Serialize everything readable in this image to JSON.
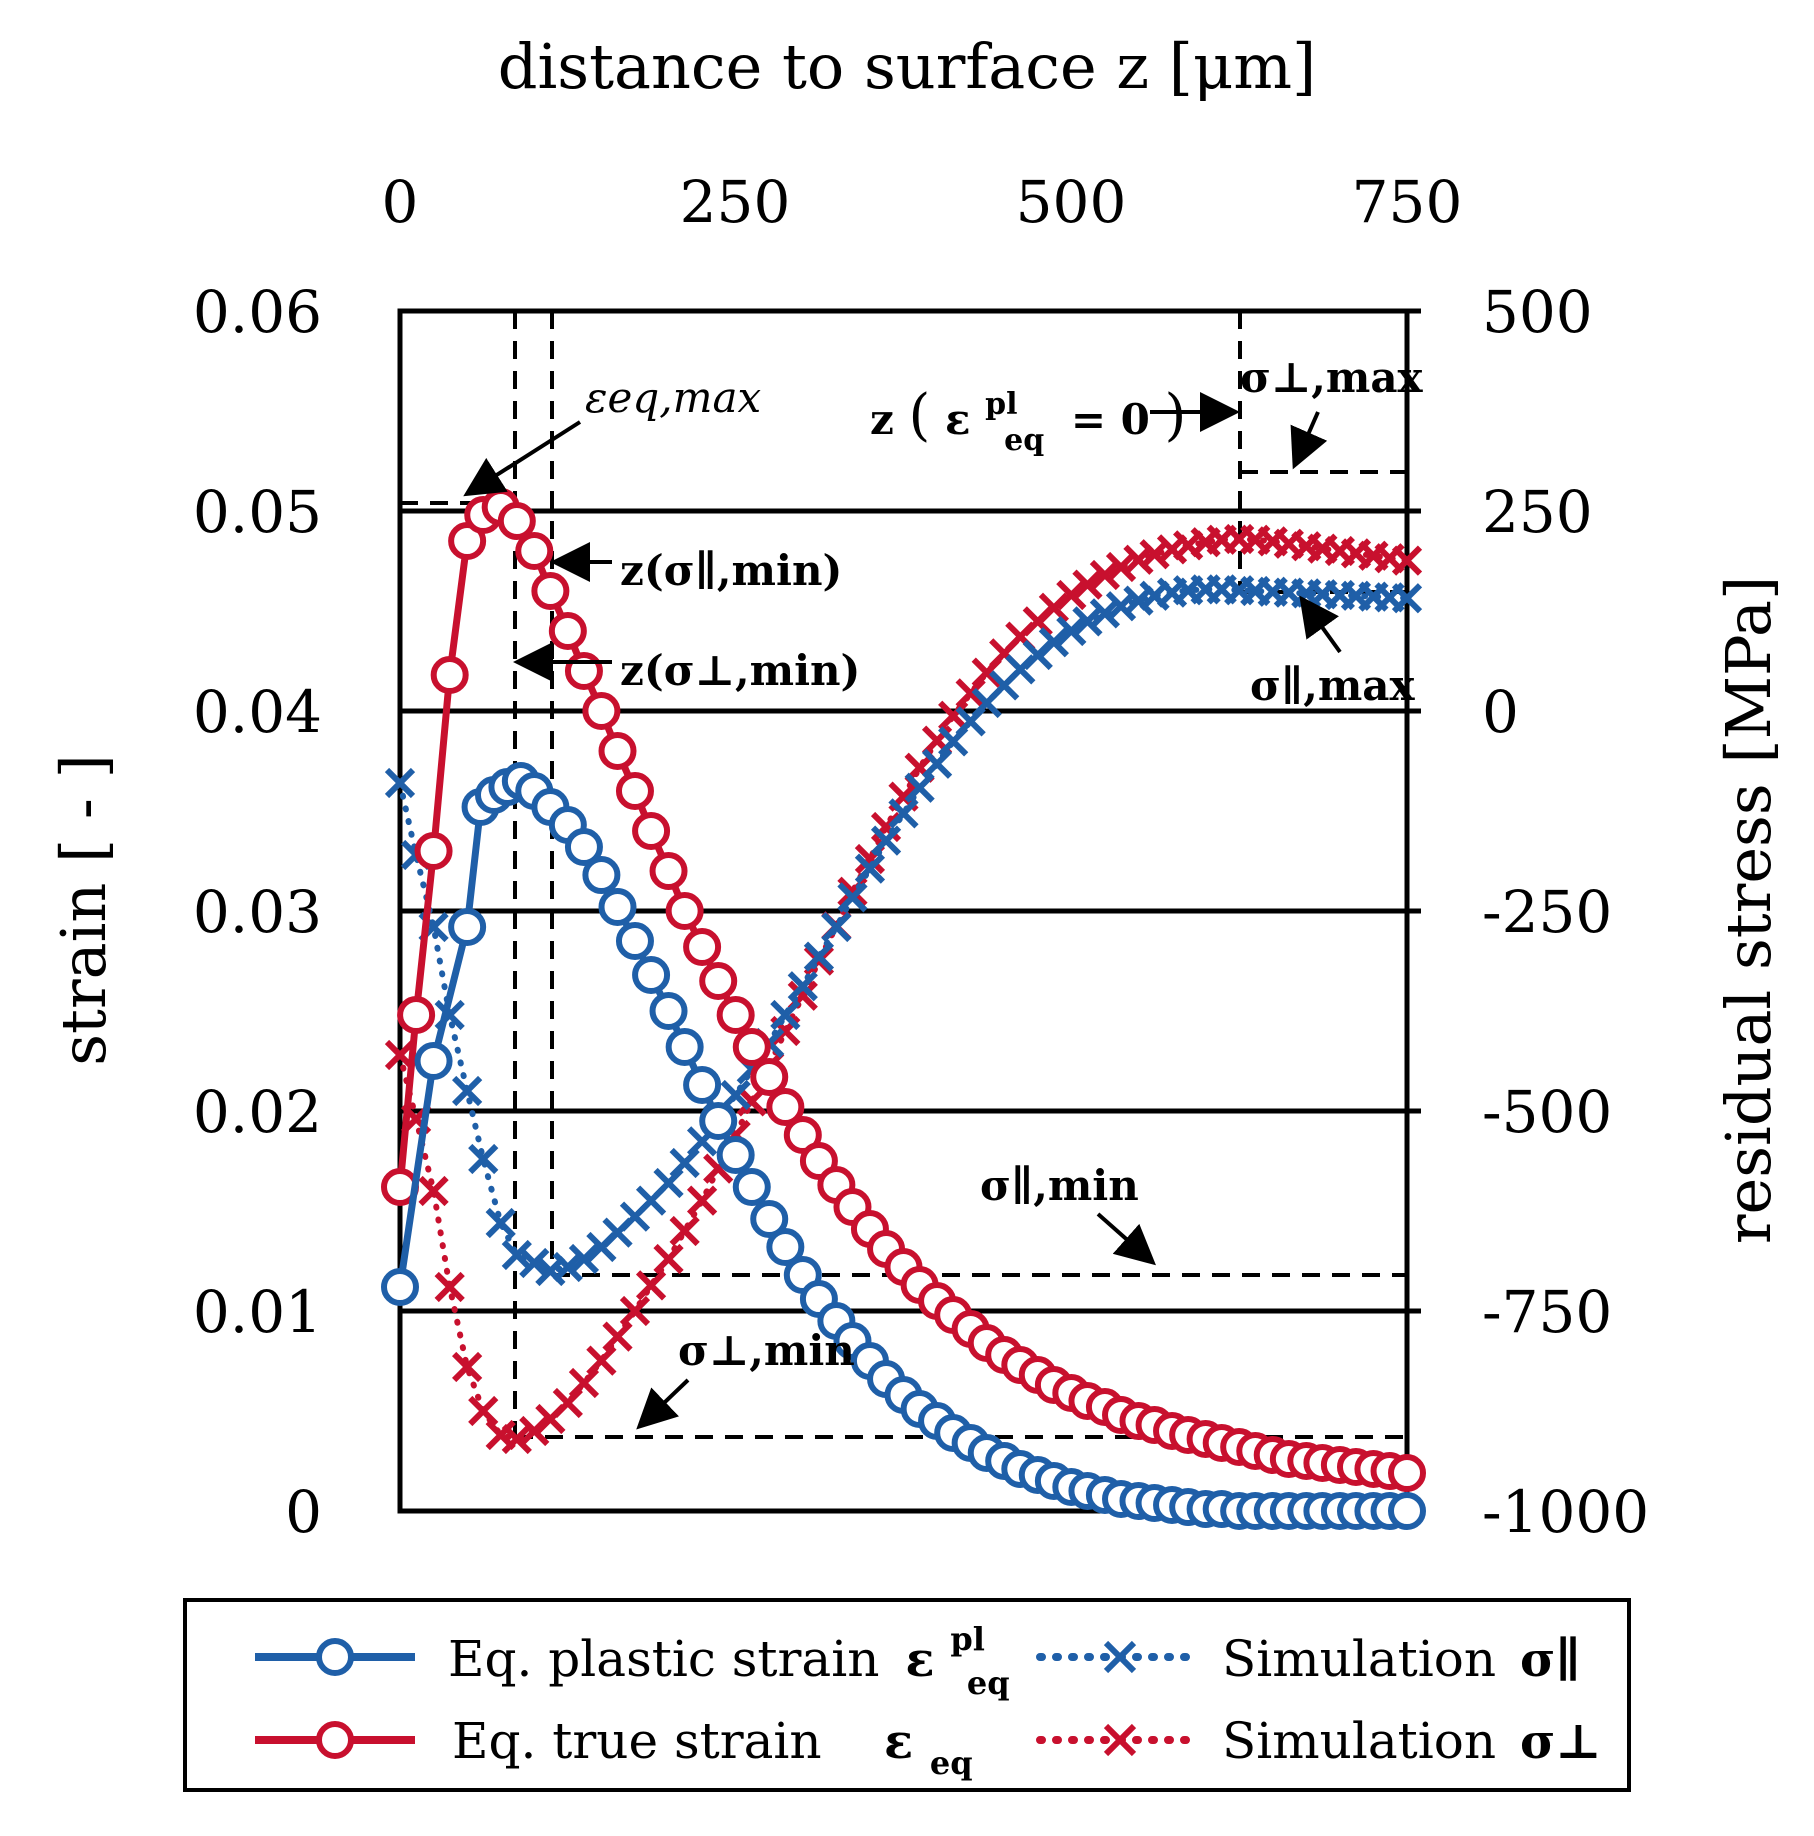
{
  "chart_data": {
    "type": "line",
    "x_axis": {
      "label": "distance to surface z [μm]",
      "ticks": [
        "0",
        "250",
        "500",
        "750"
      ],
      "range": [
        0,
        750
      ],
      "position": "top"
    },
    "y_axis_left": {
      "label": "strain [ - ]",
      "ticks": [
        "0",
        "0.01",
        "0.02",
        "0.03",
        "0.04",
        "0.05",
        "0.06"
      ],
      "range": [
        0,
        0.06
      ]
    },
    "y_axis_right": {
      "label": "residual stress [MPa]",
      "ticks": [
        "-1000",
        "-750",
        "-500",
        "-250",
        "0",
        "250",
        "500"
      ],
      "range": [
        -1000,
        500
      ]
    },
    "grid": "horizontal",
    "legend_position": "bottom",
    "colors": {
      "blue": "#1f5fa8",
      "red": "#c8102e"
    },
    "series": [
      {
        "name": "Eq. plastic strain εeq pl",
        "axis": "left",
        "style": "solid-circle",
        "color": "#1f5fa8",
        "x": [
          0,
          25,
          50,
          60,
          70,
          80,
          90,
          100,
          112,
          125,
          137,
          150,
          162,
          175,
          187,
          200,
          212,
          225,
          237,
          250,
          262,
          275,
          287,
          300,
          312,
          325,
          337,
          350,
          362,
          375,
          387,
          400,
          412,
          425,
          437,
          450,
          462,
          475,
          487,
          500,
          512,
          525,
          537,
          550,
          562,
          575,
          587,
          600,
          612,
          625,
          637,
          650,
          662,
          675,
          687,
          700,
          712,
          725,
          737,
          750
        ],
        "y": [
          0.0112,
          0.0225,
          0.0292,
          0.0352,
          0.0358,
          0.0362,
          0.0365,
          0.036,
          0.0352,
          0.0343,
          0.0332,
          0.0318,
          0.0302,
          0.0285,
          0.0268,
          0.025,
          0.0232,
          0.0213,
          0.0195,
          0.0178,
          0.0162,
          0.0146,
          0.0132,
          0.0118,
          0.0106,
          0.0095,
          0.0085,
          0.0075,
          0.0066,
          0.0058,
          0.0051,
          0.0045,
          0.0039,
          0.0034,
          0.0029,
          0.0025,
          0.0021,
          0.0018,
          0.0015,
          0.0012,
          0.001,
          0.0008,
          0.0006,
          0.0005,
          0.0004,
          0.0003,
          0.0002,
          0.0001,
          0.0001,
          0.0,
          0.0,
          0.0,
          0.0,
          0.0,
          0.0,
          0.0,
          0.0,
          0.0,
          0.0,
          0.0
        ]
      },
      {
        "name": "Eq. true strain εeq",
        "axis": "left",
        "style": "solid-circle",
        "color": "#c8102e",
        "x": [
          0,
          12,
          25,
          37,
          50,
          62,
          75,
          87,
          100,
          112,
          125,
          137,
          150,
          162,
          175,
          187,
          200,
          212,
          225,
          237,
          250,
          262,
          275,
          287,
          300,
          312,
          325,
          337,
          350,
          362,
          375,
          387,
          400,
          412,
          425,
          437,
          450,
          462,
          475,
          487,
          500,
          512,
          525,
          537,
          550,
          562,
          575,
          587,
          600,
          612,
          625,
          637,
          650,
          662,
          675,
          687,
          700,
          712,
          725,
          737,
          750
        ],
        "y": [
          0.0162,
          0.0248,
          0.033,
          0.0418,
          0.0485,
          0.0498,
          0.0502,
          0.0495,
          0.048,
          0.046,
          0.044,
          0.042,
          0.04,
          0.038,
          0.036,
          0.034,
          0.032,
          0.03,
          0.0282,
          0.0265,
          0.0248,
          0.0232,
          0.0217,
          0.0202,
          0.0188,
          0.0175,
          0.0163,
          0.0152,
          0.0141,
          0.0131,
          0.0122,
          0.0113,
          0.0105,
          0.0098,
          0.0091,
          0.0084,
          0.0078,
          0.0073,
          0.0068,
          0.0063,
          0.0059,
          0.0055,
          0.0052,
          0.0048,
          0.0045,
          0.0043,
          0.004,
          0.0038,
          0.0036,
          0.0034,
          0.0032,
          0.003,
          0.0028,
          0.0026,
          0.0025,
          0.0024,
          0.0023,
          0.0022,
          0.0021,
          0.002,
          0.0019
        ]
      },
      {
        "name": "Simulation σ∥",
        "axis": "right",
        "style": "dotted-x",
        "color": "#1f5fa8",
        "x": [
          0,
          12,
          25,
          37,
          50,
          62,
          75,
          87,
          100,
          112,
          125,
          137,
          150,
          162,
          175,
          187,
          200,
          212,
          225,
          237,
          250,
          262,
          275,
          287,
          300,
          312,
          325,
          337,
          350,
          362,
          375,
          387,
          400,
          412,
          425,
          437,
          450,
          462,
          475,
          487,
          500,
          512,
          525,
          537,
          550,
          562,
          575,
          587,
          600,
          612,
          625,
          637,
          650,
          662,
          675,
          687,
          700,
          712,
          725,
          737,
          750
        ],
        "y": [
          -90,
          -180,
          -270,
          -380,
          -475,
          -560,
          -640,
          -680,
          -690,
          -700,
          -695,
          -685,
          -670,
          -652,
          -632,
          -612,
          -590,
          -565,
          -538,
          -510,
          -480,
          -448,
          -415,
          -380,
          -344,
          -307,
          -270,
          -233,
          -197,
          -162,
          -128,
          -96,
          -66,
          -38,
          -13,
          10,
          32,
          52,
          70,
          86,
          100,
          112,
          122,
          131,
          138,
          144,
          148,
          151,
          152,
          152,
          151,
          150,
          149,
          148,
          147,
          146,
          145,
          144,
          143,
          142,
          141
        ]
      },
      {
        "name": "Simulation σ⊥",
        "axis": "right",
        "style": "dotted-x",
        "color": "#c8102e",
        "x": [
          0,
          12,
          25,
          37,
          50,
          62,
          75,
          87,
          100,
          112,
          125,
          137,
          150,
          162,
          175,
          187,
          200,
          212,
          225,
          237,
          250,
          262,
          275,
          287,
          300,
          312,
          325,
          337,
          350,
          362,
          375,
          387,
          400,
          412,
          425,
          437,
          450,
          462,
          475,
          487,
          500,
          512,
          525,
          537,
          550,
          562,
          575,
          587,
          600,
          612,
          625,
          637,
          650,
          662,
          675,
          687,
          700,
          712,
          725,
          737,
          750
        ],
        "y": [
          -430,
          -510,
          -600,
          -720,
          -820,
          -875,
          -905,
          -910,
          -900,
          -885,
          -865,
          -840,
          -812,
          -782,
          -750,
          -718,
          -685,
          -650,
          -612,
          -572,
          -530,
          -488,
          -444,
          -400,
          -356,
          -312,
          -269,
          -226,
          -185,
          -145,
          -107,
          -71,
          -37,
          -6,
          22,
          48,
          72,
          93,
          112,
          129,
          145,
          158,
          170,
          180,
          189,
          196,
          202,
          207,
          211,
          214,
          215,
          214,
          212,
          209,
          206,
          203,
          200,
          197,
          194,
          191,
          188
        ]
      }
    ],
    "annotations": {
      "eps_max": "εeq,max",
      "z_eps_zero_prefix": "z",
      "z_eps_zero_sym": "ε",
      "z_eps_zero_sup": "pl",
      "z_eps_zero_sub": "eq",
      "z_eps_zero_rest": "= 0",
      "sigma_perp_max": "σ⊥,max",
      "z_sigma_par_min": "z(σ∥,min)",
      "z_sigma_perp_min": "z(σ⊥,min)",
      "sigma_par_max": "σ∥,max",
      "sigma_par_min": "σ∥,min",
      "sigma_perp_min": "σ⊥,min"
    },
    "legend": {
      "item1_text": "Eq. plastic strain",
      "item1_sym": "ε",
      "item1_sup": "pl",
      "item1_sub": "eq",
      "item2_text": "Eq. true strain",
      "item2_sym": "ε",
      "item2_sub": "eq",
      "item3_text": "Simulation",
      "item3_sym": "σ∥",
      "item4_text": "Simulation",
      "item4_sym": "σ⊥"
    }
  }
}
